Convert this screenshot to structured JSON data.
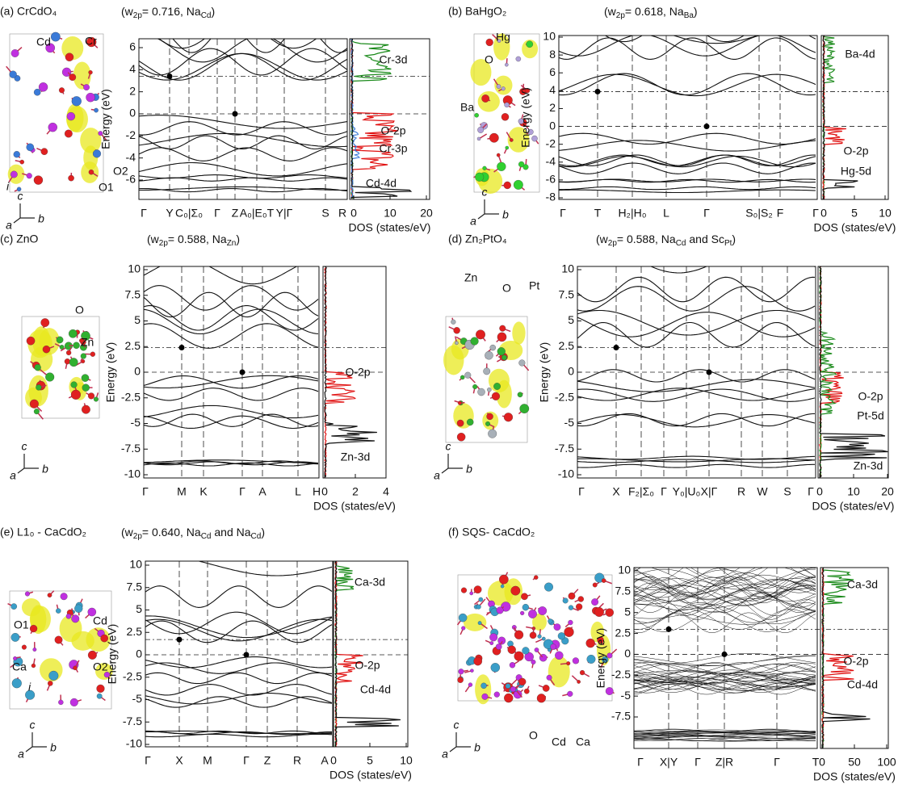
{
  "panels": [
    {
      "title": "(a) CrCdO₄",
      "subtitle": [
        "(w",
        "2p",
        "= 0.716, Na",
        "Cd",
        ")"
      ],
      "ylabel": "Energy (eV)",
      "xlabel": "DOS (states/eV)",
      "yticks": [
        6,
        4,
        2,
        0,
        -2,
        -4,
        -6
      ],
      "kpoints": [
        "Γ",
        "Y",
        "C₀|Σ₀",
        "Γ",
        "Z",
        "A₀|E₀T",
        "Y|Γ",
        "S",
        "R"
      ],
      "dos_ticks": [
        0,
        10,
        20
      ],
      "dos_labels": [
        "Cr-3d",
        "O-2p",
        "Cr-3p",
        "Cd-4d"
      ],
      "atoms": [
        "Cd",
        "Cr",
        "i",
        "O2",
        "O1"
      ],
      "axes": [
        "c",
        "a",
        "b"
      ]
    },
    {
      "title": "(b) BaHgO₂",
      "subtitle": [
        "(w",
        "2p",
        "= 0.618, Na",
        "Ba",
        ")"
      ],
      "ylabel": "Energy (eV)",
      "xlabel": "DOS (states/eV)",
      "yticks": [
        10,
        8,
        6,
        4,
        2,
        0,
        -2,
        -4,
        -6,
        -8
      ],
      "kpoints": [
        "Γ",
        "T",
        "H₂|H₀",
        "L",
        "Γ",
        "S₀|S₂",
        "F",
        "Γ"
      ],
      "dos_ticks": [
        0,
        5,
        10
      ],
      "dos_labels": [
        "Ba-4d",
        "O-2p",
        "Hg-5d"
      ],
      "atoms": [
        "Hg",
        "O",
        "Ba"
      ],
      "axes": [
        "c",
        "a",
        "b"
      ]
    },
    {
      "title": "(c) ZnO",
      "subtitle": [
        "(w",
        "2p",
        "= 0.588, Na",
        "Zn",
        ")"
      ],
      "ylabel": "Energy (eV)",
      "xlabel": "DOS (states/eV)",
      "yticks": [
        10,
        7.5,
        5,
        2.5,
        0,
        -2.5,
        -5,
        -7.5,
        -10
      ],
      "kpoints": [
        "Γ",
        "M",
        "K",
        "Γ",
        "A",
        "L",
        "H"
      ],
      "dos_ticks": [
        0,
        2,
        4
      ],
      "dos_labels": [
        "O-2p",
        "Zn-3d"
      ],
      "atoms": [
        "O",
        "Zn"
      ],
      "axes": [
        "c",
        "a",
        "b"
      ]
    },
    {
      "title": "(d) Zn₂PtO₄",
      "subtitle": [
        "(w",
        "2p",
        "= 0.588, Na",
        "Cd",
        " and Sc",
        "Pt",
        ")"
      ],
      "ylabel": "Energy (eV)",
      "xlabel": "DOS (states/eV)",
      "yticks": [
        10,
        7.5,
        5,
        2.5,
        0,
        -2.5,
        -5,
        -7.5,
        -10
      ],
      "kpoints": [
        "Γ",
        "X",
        "F₂|Σ₀",
        "Γ",
        "Y₀|U₀",
        "X|Γ",
        "R",
        "W",
        "S",
        "Γ"
      ],
      "dos_ticks": [
        0,
        10,
        20
      ],
      "dos_labels": [
        "O-2p",
        "Pt-5d",
        "Zn-3d"
      ],
      "atoms": [
        "Zn",
        "O",
        "Pt"
      ],
      "axes": [
        "c",
        "a",
        "b"
      ]
    },
    {
      "title": "(e) L1₀ - CaCdO₂",
      "subtitle": [
        "(w",
        "2p",
        "= 0.640, Na",
        "Cd",
        " and Na",
        "Cd",
        ")"
      ],
      "ylabel": "Energy (eV)",
      "xlabel": "DOS (states/eV)",
      "yticks": [
        10,
        7.5,
        5,
        2.5,
        0,
        -2.5,
        -5,
        -7.5,
        -10
      ],
      "kpoints": [
        "Γ",
        "X",
        "M",
        "Γ",
        "Z",
        "R",
        "A"
      ],
      "dos_ticks": [
        0,
        5,
        10
      ],
      "dos_labels": [
        "Ca-3d",
        "O-2p",
        "Cd-4d"
      ],
      "atoms": [
        "O1",
        "Cd",
        "Ca",
        "O2",
        "i"
      ],
      "axes": [
        "c",
        "a",
        "b"
      ]
    },
    {
      "title": "(f) SQS- CaCdO₂",
      "ylabel": "Energy (eV)",
      "xlabel": "DOS (states/eV)",
      "yticks": [
        10,
        7.5,
        5,
        2.5,
        0,
        -2.5,
        -5,
        -7.5
      ],
      "kpoints": [
        "Γ",
        "X|Y",
        "Γ",
        "Z|R",
        "Γ",
        "T"
      ],
      "dos_ticks": [
        0,
        50,
        100
      ],
      "dos_labels": [
        "Ca-3d",
        "O-2p",
        "Cd-4d"
      ],
      "atoms": [
        "O",
        "Cd",
        "Ca"
      ],
      "axes": [
        "c",
        "a",
        "b"
      ]
    }
  ]
}
